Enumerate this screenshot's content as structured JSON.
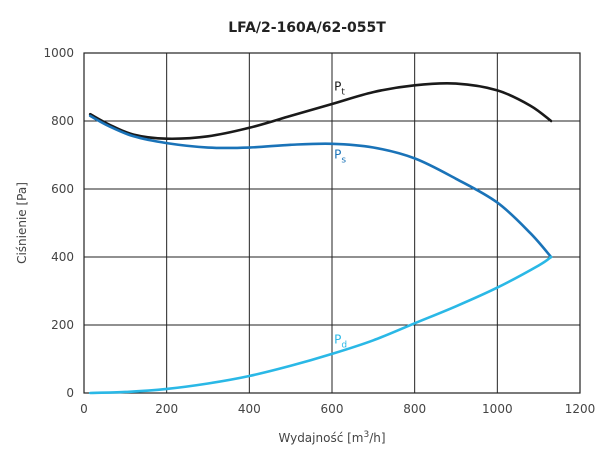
{
  "chart_data": {
    "type": "line",
    "title": "LFA/2-160A/62-055T",
    "xlabel_pre": "Wydajność [m",
    "xlabel_sup": "3",
    "xlabel_post": "/h]",
    "ylabel": "Ciśnienie [Pa]",
    "xlim": [
      0,
      1200
    ],
    "ylim": [
      0,
      1000
    ],
    "xticks": [
      0,
      200,
      400,
      600,
      800,
      1000,
      1200
    ],
    "yticks": [
      0,
      200,
      400,
      600,
      800,
      1000
    ],
    "grid": true,
    "series": [
      {
        "name": "Pt",
        "label_main": "P",
        "label_sub": "t",
        "color": "#1a1a1a",
        "label_at": [
          605,
          890
        ],
        "points": [
          [
            15,
            820
          ],
          [
            60,
            790
          ],
          [
            120,
            760
          ],
          [
            200,
            748
          ],
          [
            300,
            755
          ],
          [
            400,
            780
          ],
          [
            500,
            815
          ],
          [
            600,
            850
          ],
          [
            700,
            885
          ],
          [
            800,
            905
          ],
          [
            900,
            910
          ],
          [
            1000,
            890
          ],
          [
            1080,
            845
          ],
          [
            1130,
            800
          ]
        ]
      },
      {
        "name": "Ps",
        "label_main": "P",
        "label_sub": "s",
        "color": "#1a73b8",
        "label_at": [
          605,
          690
        ],
        "points": [
          [
            15,
            815
          ],
          [
            60,
            785
          ],
          [
            120,
            755
          ],
          [
            200,
            735
          ],
          [
            300,
            722
          ],
          [
            400,
            722
          ],
          [
            500,
            730
          ],
          [
            600,
            733
          ],
          [
            700,
            722
          ],
          [
            800,
            690
          ],
          [
            900,
            630
          ],
          [
            1000,
            560
          ],
          [
            1080,
            470
          ],
          [
            1130,
            400
          ]
        ]
      },
      {
        "name": "Pd",
        "label_main": "P",
        "label_sub": "d",
        "color": "#2ab8e6",
        "label_at": [
          605,
          145
        ],
        "points": [
          [
            15,
            0
          ],
          [
            100,
            3
          ],
          [
            200,
            12
          ],
          [
            300,
            28
          ],
          [
            400,
            50
          ],
          [
            500,
            80
          ],
          [
            600,
            115
          ],
          [
            700,
            155
          ],
          [
            800,
            205
          ],
          [
            900,
            255
          ],
          [
            1000,
            310
          ],
          [
            1100,
            375
          ],
          [
            1130,
            400
          ]
        ]
      }
    ]
  }
}
